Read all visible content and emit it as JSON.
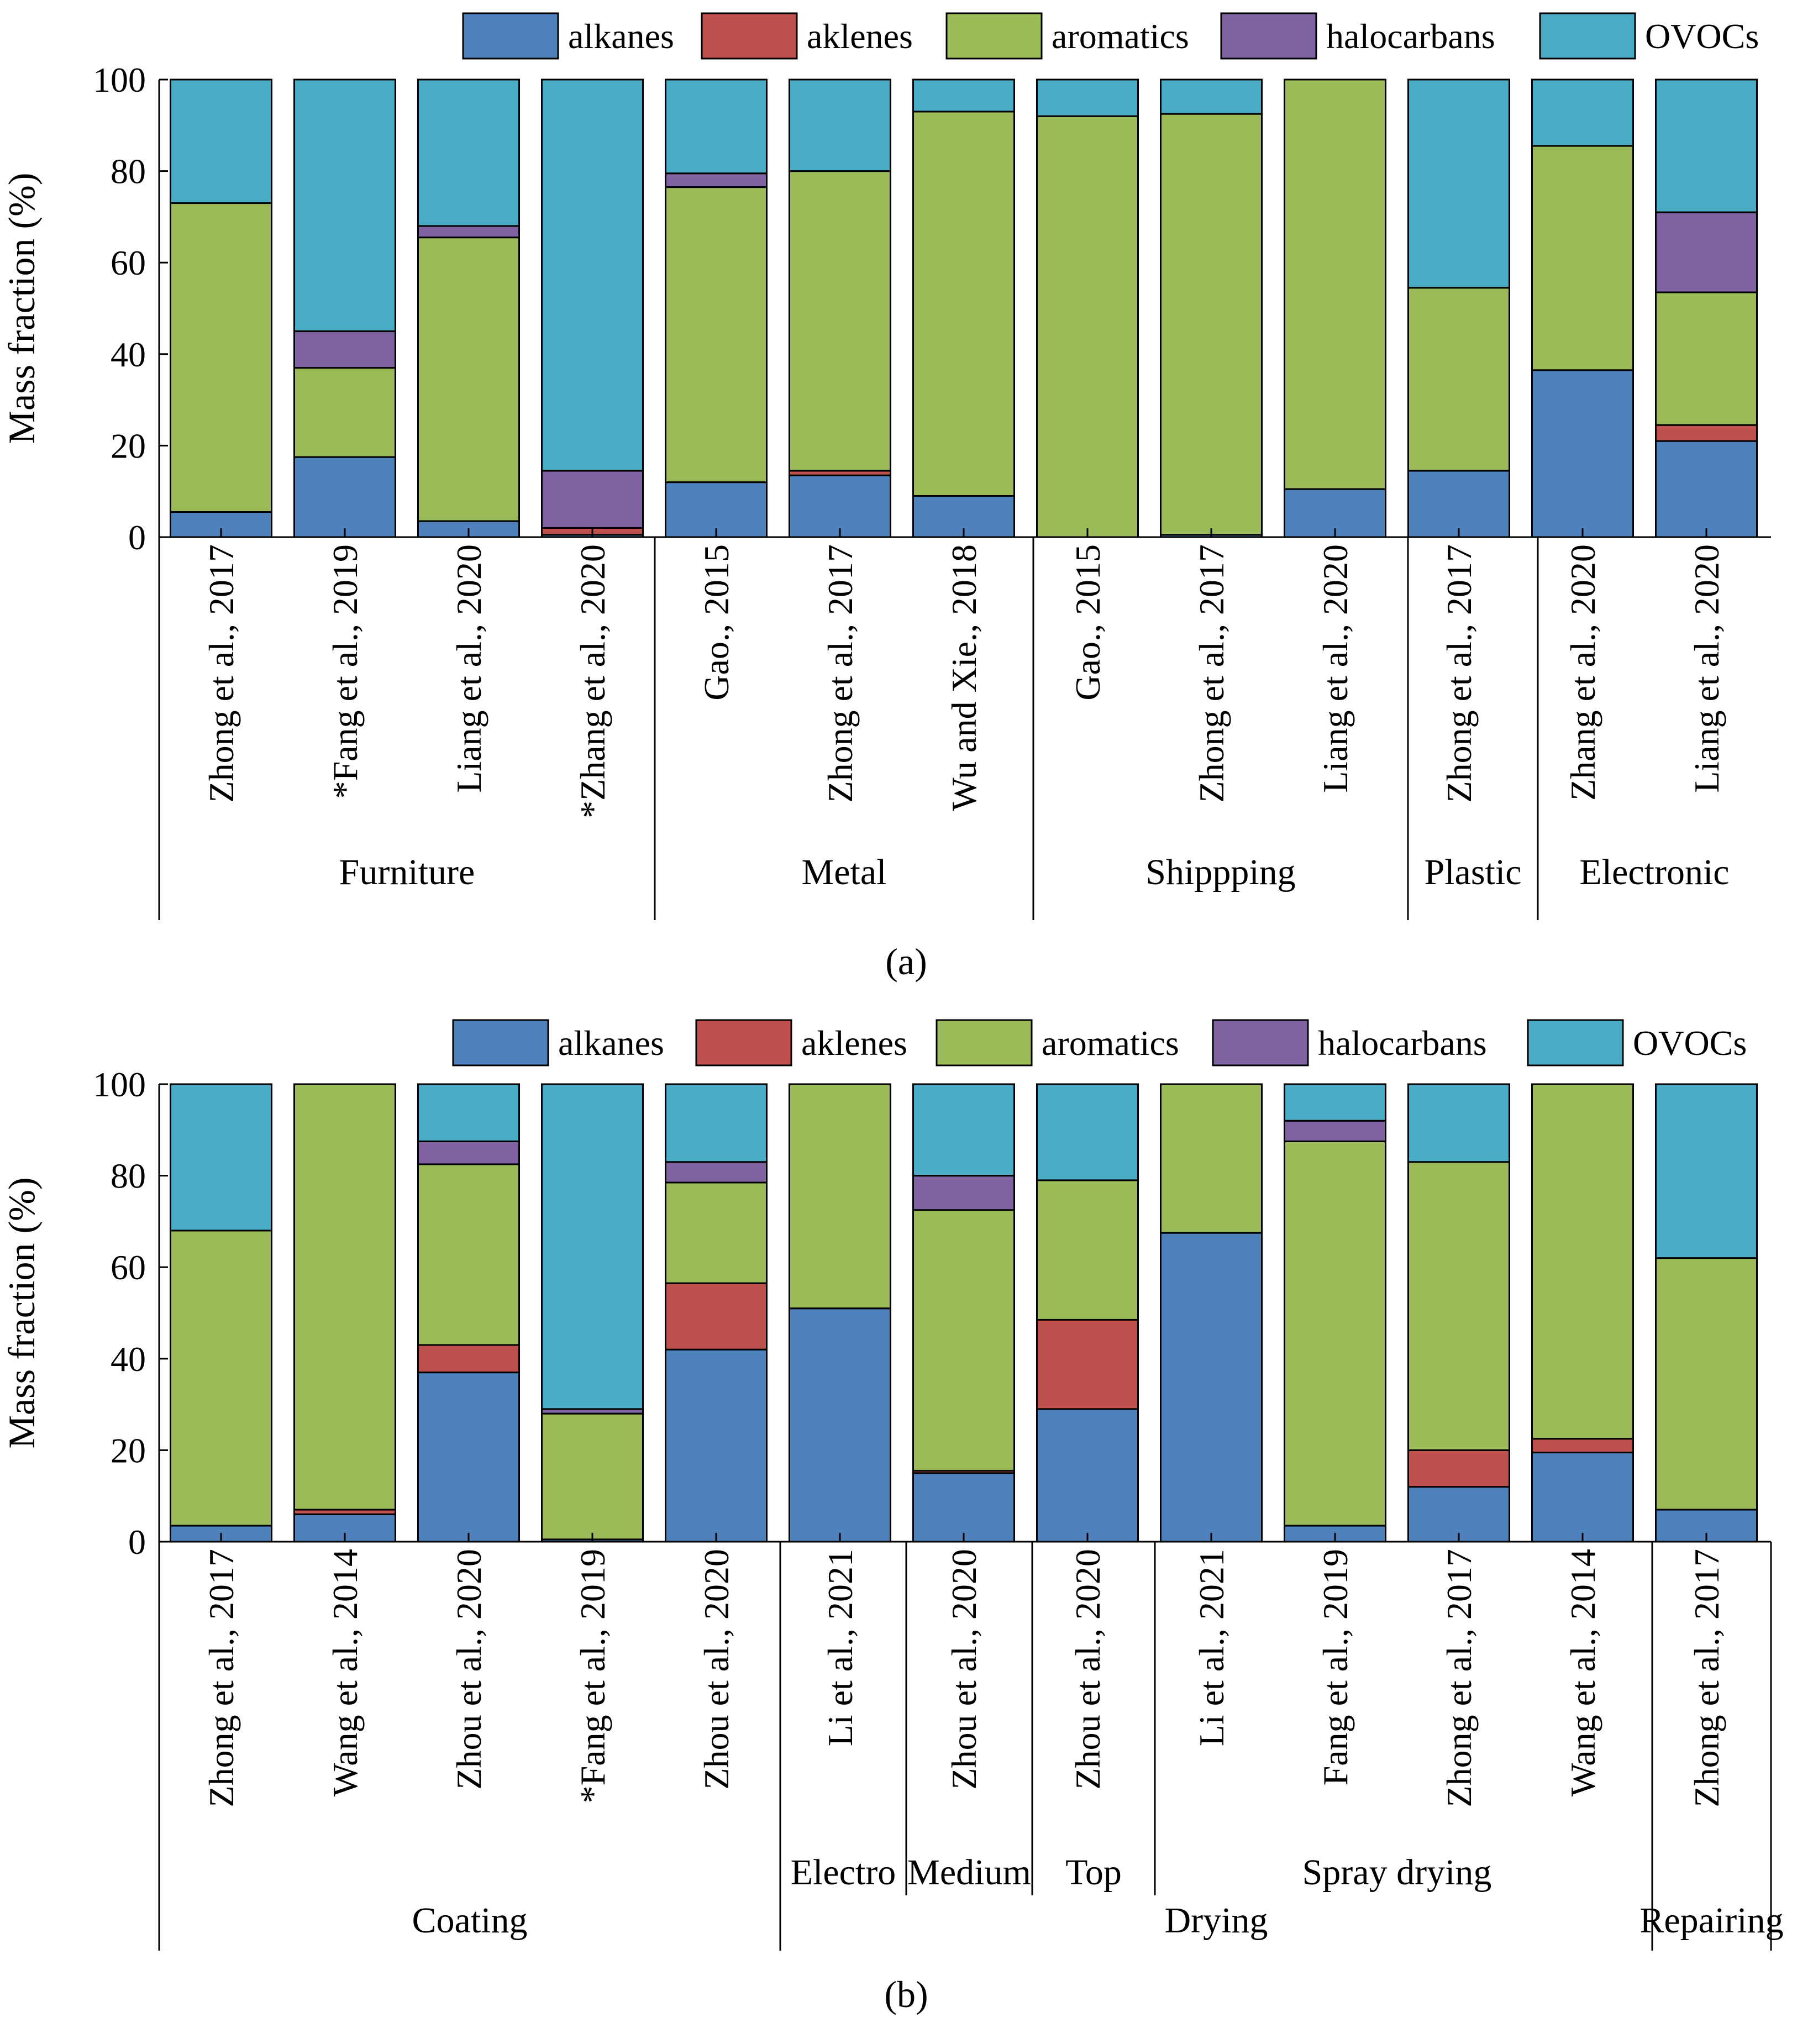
{
  "colors": {
    "alkanes": "#4F81BD",
    "aklenes": "#C0504D",
    "aromatics": "#9BBB59",
    "halocarbans": "#8064A2",
    "OVOCs": "#4BACC6"
  },
  "chart_data": [
    {
      "id": "a",
      "type": "bar",
      "stacked": true,
      "panel_label": "(a)",
      "ylabel": "Mass fraction (%)",
      "ylim": [
        0,
        100
      ],
      "yticks": [
        "0",
        "20",
        "40",
        "60",
        "80",
        "100"
      ],
      "legend": [
        "alkanes",
        "aklenes",
        "aromatics",
        "halocarbans",
        "OVOCs"
      ],
      "legend_position": "top",
      "categories": [
        "Zhong et al., 2017",
        "*Fang et al., 2019",
        "Liang et al., 2020",
        "*Zhang et al., 2020",
        "Gao., 2015",
        "Zhong et al., 2017",
        "Wu and Xie., 2018",
        "Gao., 2015",
        "Zhong et al., 2017",
        "Liang et al., 2020",
        "Zhong et al., 2017",
        "Zhang et al., 2020",
        "Liang et al., 2020"
      ],
      "groups": [
        {
          "label": "Furniture",
          "start": 0,
          "end": 3
        },
        {
          "label": "Metal",
          "start": 4,
          "end": 6
        },
        {
          "label": "Shippping",
          "start": 7,
          "end": 9
        },
        {
          "label": "Plastic",
          "start": 10,
          "end": 10
        },
        {
          "label": "Electronic",
          "start": 11,
          "end": 12
        }
      ],
      "series": [
        {
          "name": "alkanes",
          "values": [
            5.5,
            17.5,
            3.5,
            0.5,
            12.0,
            13.5,
            9.0,
            0.0,
            0.5,
            10.5,
            14.5,
            36.5,
            21.0
          ]
        },
        {
          "name": "aklenes",
          "values": [
            0.0,
            0.0,
            0.0,
            1.5,
            0.0,
            1.0,
            0.0,
            0.0,
            0.0,
            0.0,
            0.0,
            0.0,
            3.5
          ]
        },
        {
          "name": "aromatics",
          "values": [
            67.5,
            19.5,
            62.0,
            0.0,
            64.5,
            65.5,
            84.0,
            92.0,
            92.0,
            89.5,
            40.0,
            49.0,
            29.0
          ]
        },
        {
          "name": "halocarbans",
          "values": [
            0.0,
            8.0,
            2.5,
            12.5,
            3.0,
            0.0,
            0.0,
            0.0,
            0.0,
            0.0,
            0.0,
            0.0,
            17.5
          ]
        },
        {
          "name": "OVOCs",
          "values": [
            27.0,
            55.0,
            32.0,
            85.5,
            20.5,
            20.0,
            7.0,
            8.0,
            7.5,
            0.0,
            45.5,
            14.5,
            29.0
          ]
        }
      ]
    },
    {
      "id": "b",
      "type": "bar",
      "stacked": true,
      "panel_label": "(b)",
      "ylabel": "Mass fraction (%)",
      "ylim": [
        0,
        100
      ],
      "yticks": [
        "0",
        "20",
        "40",
        "60",
        "80",
        "100"
      ],
      "legend": [
        "alkanes",
        "aklenes",
        "aromatics",
        "halocarbans",
        "OVOCs"
      ],
      "legend_position": "top",
      "categories": [
        "Zhong et al., 2017",
        "Wang et al., 2014",
        "Zhou et al., 2020",
        "*Fang et al., 2019",
        "Zhou et al., 2020",
        "Li et al., 2021",
        "Zhou et al., 2020",
        "Zhou et al., 2020",
        "Li et al., 2021",
        "Fang et al., 2019",
        "Zhong et al., 2017",
        "Wang et al., 2014",
        "Zhong et al., 2017"
      ],
      "subgroups": [
        {
          "label": "Electro",
          "start": 5,
          "end": 5
        },
        {
          "label": "Medium",
          "start": 6,
          "end": 6
        },
        {
          "label": "Top",
          "start": 7,
          "end": 7
        },
        {
          "label": "Spray drying",
          "start": 8,
          "end": 11
        }
      ],
      "groups": [
        {
          "label": "Coating",
          "start": 0,
          "end": 4
        },
        {
          "label": "Drying",
          "start": 5,
          "end": 11
        },
        {
          "label": "Repairing",
          "start": 12,
          "end": 12
        }
      ],
      "series": [
        {
          "name": "alkanes",
          "values": [
            3.5,
            6.0,
            37.0,
            0.5,
            42.0,
            51.0,
            15.0,
            29.0,
            67.5,
            3.5,
            12.0,
            19.5,
            7.0
          ]
        },
        {
          "name": "aklenes",
          "values": [
            0.0,
            1.0,
            6.0,
            0.0,
            14.5,
            0.0,
            0.5,
            19.5,
            0.0,
            0.0,
            8.0,
            3.0,
            0.0
          ]
        },
        {
          "name": "aromatics",
          "values": [
            64.5,
            93.0,
            39.5,
            27.5,
            22.0,
            49.0,
            57.0,
            30.5,
            32.5,
            84.0,
            63.0,
            77.5,
            55.0
          ]
        },
        {
          "name": "halocarbans",
          "values": [
            0.0,
            0.0,
            5.0,
            1.0,
            4.5,
            0.0,
            7.5,
            0.0,
            0.0,
            4.5,
            0.0,
            0.0,
            0.0
          ]
        },
        {
          "name": "OVOCs",
          "values": [
            32.0,
            0.0,
            12.5,
            71.0,
            17.0,
            0.0,
            20.0,
            21.0,
            0.0,
            8.0,
            17.0,
            0.0,
            38.0
          ]
        }
      ]
    }
  ]
}
